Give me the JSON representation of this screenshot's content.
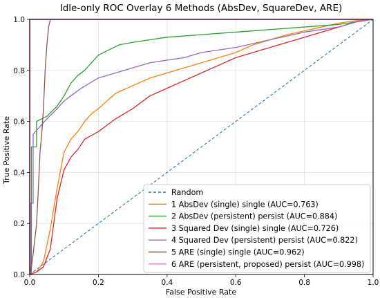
{
  "chart_data": {
    "type": "line",
    "title": "Idle-only ROC Overlay 6 Methods (AbsDev, SquareDev, ARE)",
    "xlabel": "False Positive Rate",
    "ylabel": "True Positive Rate",
    "xlim": [
      0,
      1
    ],
    "ylim": [
      0,
      1
    ],
    "xticks": [
      "0.0",
      "0.2",
      "0.4",
      "0.6",
      "0.8",
      "1.0"
    ],
    "yticks": [
      "0.0",
      "0.2",
      "0.4",
      "0.6",
      "0.8",
      "1.0"
    ],
    "grid": true,
    "legend_position": "lower right",
    "series": [
      {
        "name": "Random",
        "color": "#1f77b4",
        "dashed": true,
        "x": [
          0,
          1
        ],
        "y": [
          0,
          1
        ]
      },
      {
        "name": "1 AbsDev (single) single (AUC=0.763)",
        "color": "#ff7f0e",
        "x": [
          0,
          0.02,
          0.04,
          0.06,
          0.08,
          0.1,
          0.12,
          0.14,
          0.16,
          0.18,
          0.2,
          0.25,
          0.3,
          0.35,
          0.4,
          0.45,
          0.5,
          0.55,
          0.6,
          0.65,
          0.7,
          0.75,
          0.8,
          0.85,
          0.9,
          0.95,
          1.0
        ],
        "y": [
          0,
          0.01,
          0.05,
          0.18,
          0.34,
          0.48,
          0.53,
          0.56,
          0.6,
          0.63,
          0.65,
          0.71,
          0.74,
          0.77,
          0.79,
          0.81,
          0.83,
          0.85,
          0.87,
          0.9,
          0.92,
          0.94,
          0.955,
          0.97,
          0.985,
          0.995,
          1.0
        ]
      },
      {
        "name": "2 AbsDev (persistent) persist (AUC=0.884)",
        "color": "#2ca02c",
        "x": [
          0,
          0.005,
          0.005,
          0.02,
          0.02,
          0.05,
          0.08,
          0.1,
          0.12,
          0.14,
          0.16,
          0.2,
          0.26,
          0.3,
          0.35,
          0.4,
          0.5,
          0.6,
          0.7,
          0.8,
          0.9,
          0.95,
          1.0
        ],
        "y": [
          0,
          0,
          0.5,
          0.5,
          0.6,
          0.62,
          0.66,
          0.7,
          0.75,
          0.78,
          0.8,
          0.86,
          0.9,
          0.91,
          0.92,
          0.93,
          0.94,
          0.95,
          0.96,
          0.97,
          0.98,
          0.99,
          1.0
        ]
      },
      {
        "name": "3 Squared Dev (single) single (AUC=0.726)",
        "color": "#d62728",
        "x": [
          0,
          0.02,
          0.04,
          0.06,
          0.08,
          0.1,
          0.12,
          0.14,
          0.16,
          0.2,
          0.25,
          0.3,
          0.35,
          0.4,
          0.45,
          0.5,
          0.55,
          0.6,
          0.65,
          0.7,
          0.75,
          0.8,
          0.85,
          0.9,
          0.95,
          1.0
        ],
        "y": [
          0,
          0.01,
          0.03,
          0.1,
          0.3,
          0.41,
          0.46,
          0.49,
          0.53,
          0.56,
          0.61,
          0.65,
          0.7,
          0.73,
          0.76,
          0.79,
          0.82,
          0.85,
          0.87,
          0.89,
          0.91,
          0.93,
          0.95,
          0.97,
          0.99,
          1.0
        ]
      },
      {
        "name": "4 Squared Dev (persistent) persist (AUC=0.822)",
        "color": "#9467bd",
        "x": [
          0,
          0.002,
          0.002,
          0.01,
          0.01,
          0.03,
          0.05,
          0.08,
          0.1,
          0.12,
          0.15,
          0.2,
          0.25,
          0.3,
          0.35,
          0.4,
          0.45,
          0.5,
          0.6,
          0.7,
          0.8,
          0.9,
          0.95,
          1.0
        ],
        "y": [
          0,
          0,
          0.28,
          0.28,
          0.55,
          0.58,
          0.61,
          0.65,
          0.68,
          0.7,
          0.73,
          0.77,
          0.79,
          0.81,
          0.83,
          0.84,
          0.85,
          0.87,
          0.89,
          0.92,
          0.95,
          0.97,
          0.99,
          1.0
        ]
      },
      {
        "name": "5 ARE (single) single (AUC=0.962)",
        "color": "#8c564b",
        "x": [
          0,
          0.005,
          0.01,
          0.015,
          0.02,
          0.025,
          0.03,
          0.035,
          0.04,
          0.045,
          0.05,
          0.055,
          0.06,
          1.0
        ],
        "y": [
          0,
          0.03,
          0.08,
          0.14,
          0.2,
          0.33,
          0.48,
          0.55,
          0.65,
          0.8,
          0.9,
          0.97,
          1.0,
          1.0
        ]
      },
      {
        "name": "6 ARE (persistent, proposed) persist (AUC=0.998)",
        "color": "#e377c2",
        "x": [
          0,
          0,
          1.0
        ],
        "y": [
          0,
          1.0,
          1.0
        ]
      }
    ]
  }
}
